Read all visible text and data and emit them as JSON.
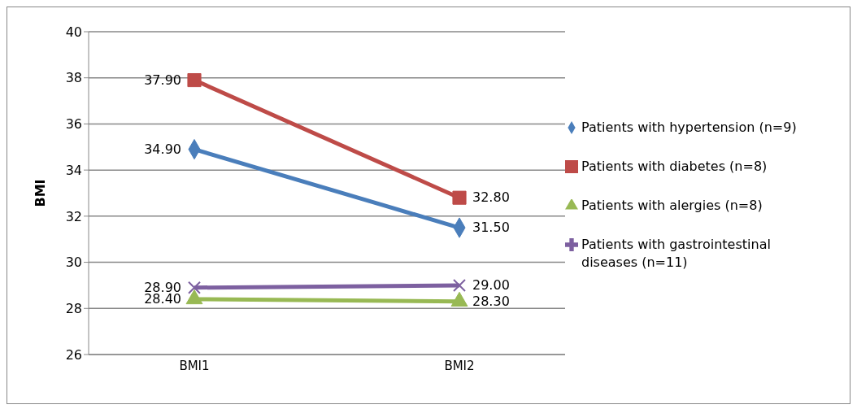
{
  "chart_data": {
    "type": "line",
    "ylabel": "BMI",
    "categories": [
      "BMI1",
      "BMI2"
    ],
    "series": [
      {
        "name": "Patients with hypertension (n=9)",
        "color": "#4a7ebb",
        "values": [
          34.9,
          31.5
        ],
        "value_labels": [
          "34.90",
          "31.50"
        ],
        "marker": "diamond"
      },
      {
        "name": "Patients with diabetes (n=8)",
        "color": "#be4b48",
        "values": [
          37.9,
          32.8
        ],
        "value_labels": [
          "37.90",
          "32.80"
        ],
        "marker": "square"
      },
      {
        "name": "Patients with alergies (n=8)",
        "color": "#98b954",
        "values": [
          28.4,
          28.3
        ],
        "value_labels": [
          "28.40",
          "28.30"
        ],
        "marker": "triangle"
      },
      {
        "name": "Patients with gastrointestinal diseases (n=11)",
        "color": "#7d60a0",
        "values": [
          28.9,
          29.0
        ],
        "value_labels": [
          "28.90",
          "29.00"
        ],
        "marker": "cross"
      }
    ],
    "ylim": [
      26,
      40
    ],
    "yticks": [
      26,
      28,
      30,
      32,
      34,
      36,
      38,
      40
    ],
    "grid": "y",
    "legend": "right",
    "line_style": "solid"
  }
}
